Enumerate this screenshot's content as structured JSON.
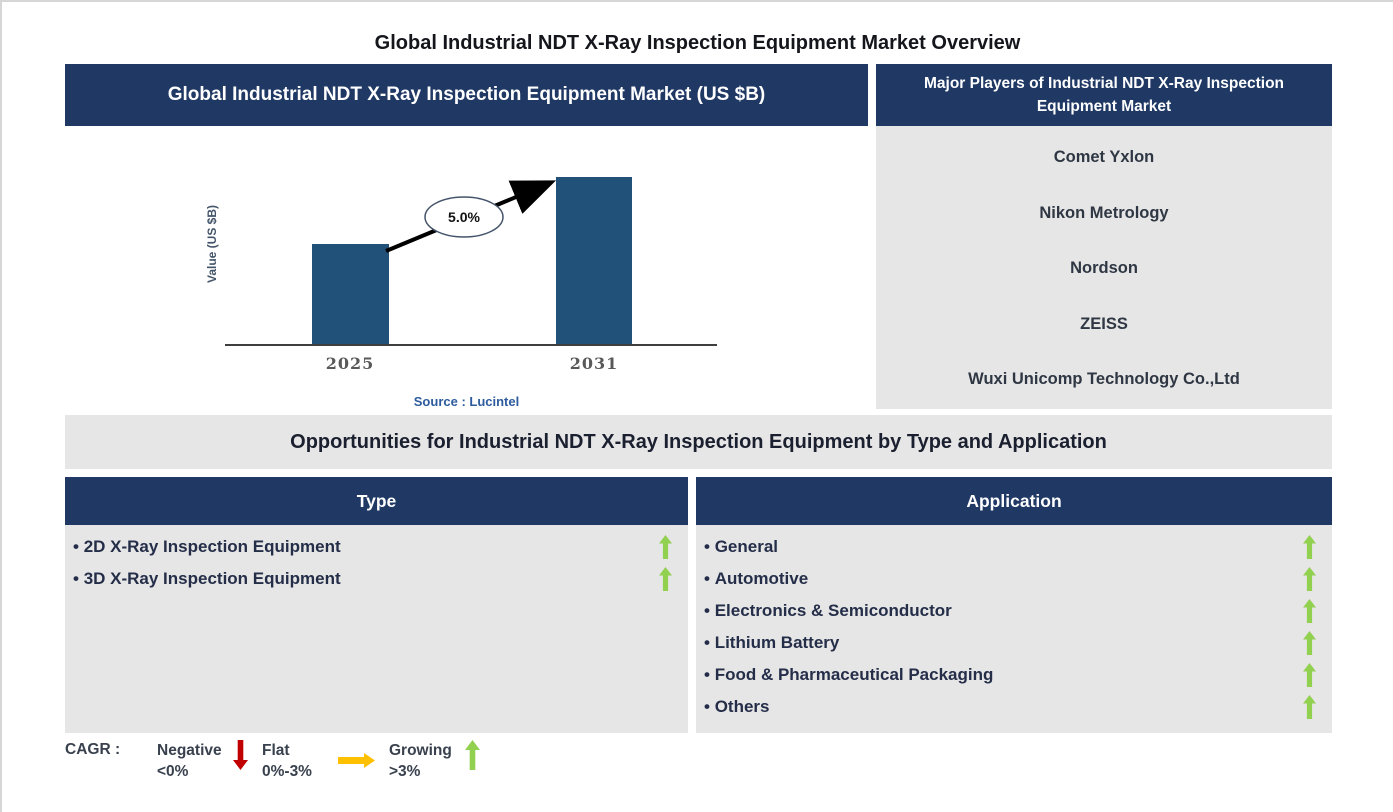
{
  "page": {
    "title": "Global Industrial NDT X-Ray Inspection Equipment Market Overview"
  },
  "market_chart": {
    "header": "Global Industrial NDT X-Ray Inspection Equipment Market (US $B)",
    "source": "Source : Lucintel"
  },
  "chart_data": {
    "type": "bar",
    "title": "Global Industrial NDT X-Ray Inspection Equipment Market (US $B)",
    "categories": [
      "2025",
      "2031"
    ],
    "values_relative": [
      0.6,
      1.0
    ],
    "values_note": "No numeric y-axis shown; 2025 bar is ~60% of the 2031 bar height",
    "annotation": "5.0%",
    "annotation_meaning": "CAGR from 2025 to 2031",
    "ylabel": "Value (US $B)",
    "xlabel": "",
    "grid": false,
    "legend": false,
    "bar_color": "#215079"
  },
  "players": {
    "header": "Major Players of Industrial NDT X-Ray Inspection Equipment Market",
    "items": [
      "Comet Yxlon",
      "Nikon Metrology",
      "Nordson",
      "ZEISS",
      "Wuxi Unicomp Technology Co.,Ltd"
    ]
  },
  "opportunities": {
    "title": "Opportunities for Industrial NDT X-Ray Inspection Equipment by Type and Application",
    "type_column": {
      "header": "Type",
      "items": [
        {
          "label": "2D X-Ray Inspection Equipment",
          "trend": "growing"
        },
        {
          "label": "3D X-Ray Inspection Equipment",
          "trend": "growing"
        }
      ]
    },
    "application_column": {
      "header": "Application",
      "items": [
        {
          "label": "General",
          "trend": "growing"
        },
        {
          "label": "Automotive",
          "trend": "growing"
        },
        {
          "label": "Electronics & Semiconductor",
          "trend": "growing"
        },
        {
          "label": "Lithium Battery",
          "trend": "growing"
        },
        {
          "label": "Food & Pharmaceutical Packaging",
          "trend": "growing"
        },
        {
          "label": "Others",
          "trend": "growing"
        }
      ]
    }
  },
  "cagr_legend": {
    "label": "CAGR :",
    "entries": [
      {
        "name": "Negative",
        "range": "<0%",
        "icon": "down-arrow",
        "color": "#C00000"
      },
      {
        "name": "Flat",
        "range": "0%-3%",
        "icon": "right-arrow",
        "color": "#FFC000"
      },
      {
        "name": "Growing",
        "range": ">3%",
        "icon": "up-arrow",
        "color": "#92D050"
      }
    ]
  },
  "colors": {
    "navy_header": "#1F3864",
    "panel_gray": "#E7E6E6",
    "bar_blue": "#215079",
    "source_blue": "#2D5C9E",
    "growing_green": "#92D050",
    "negative_red": "#C00000",
    "flat_amber": "#FFC000"
  }
}
